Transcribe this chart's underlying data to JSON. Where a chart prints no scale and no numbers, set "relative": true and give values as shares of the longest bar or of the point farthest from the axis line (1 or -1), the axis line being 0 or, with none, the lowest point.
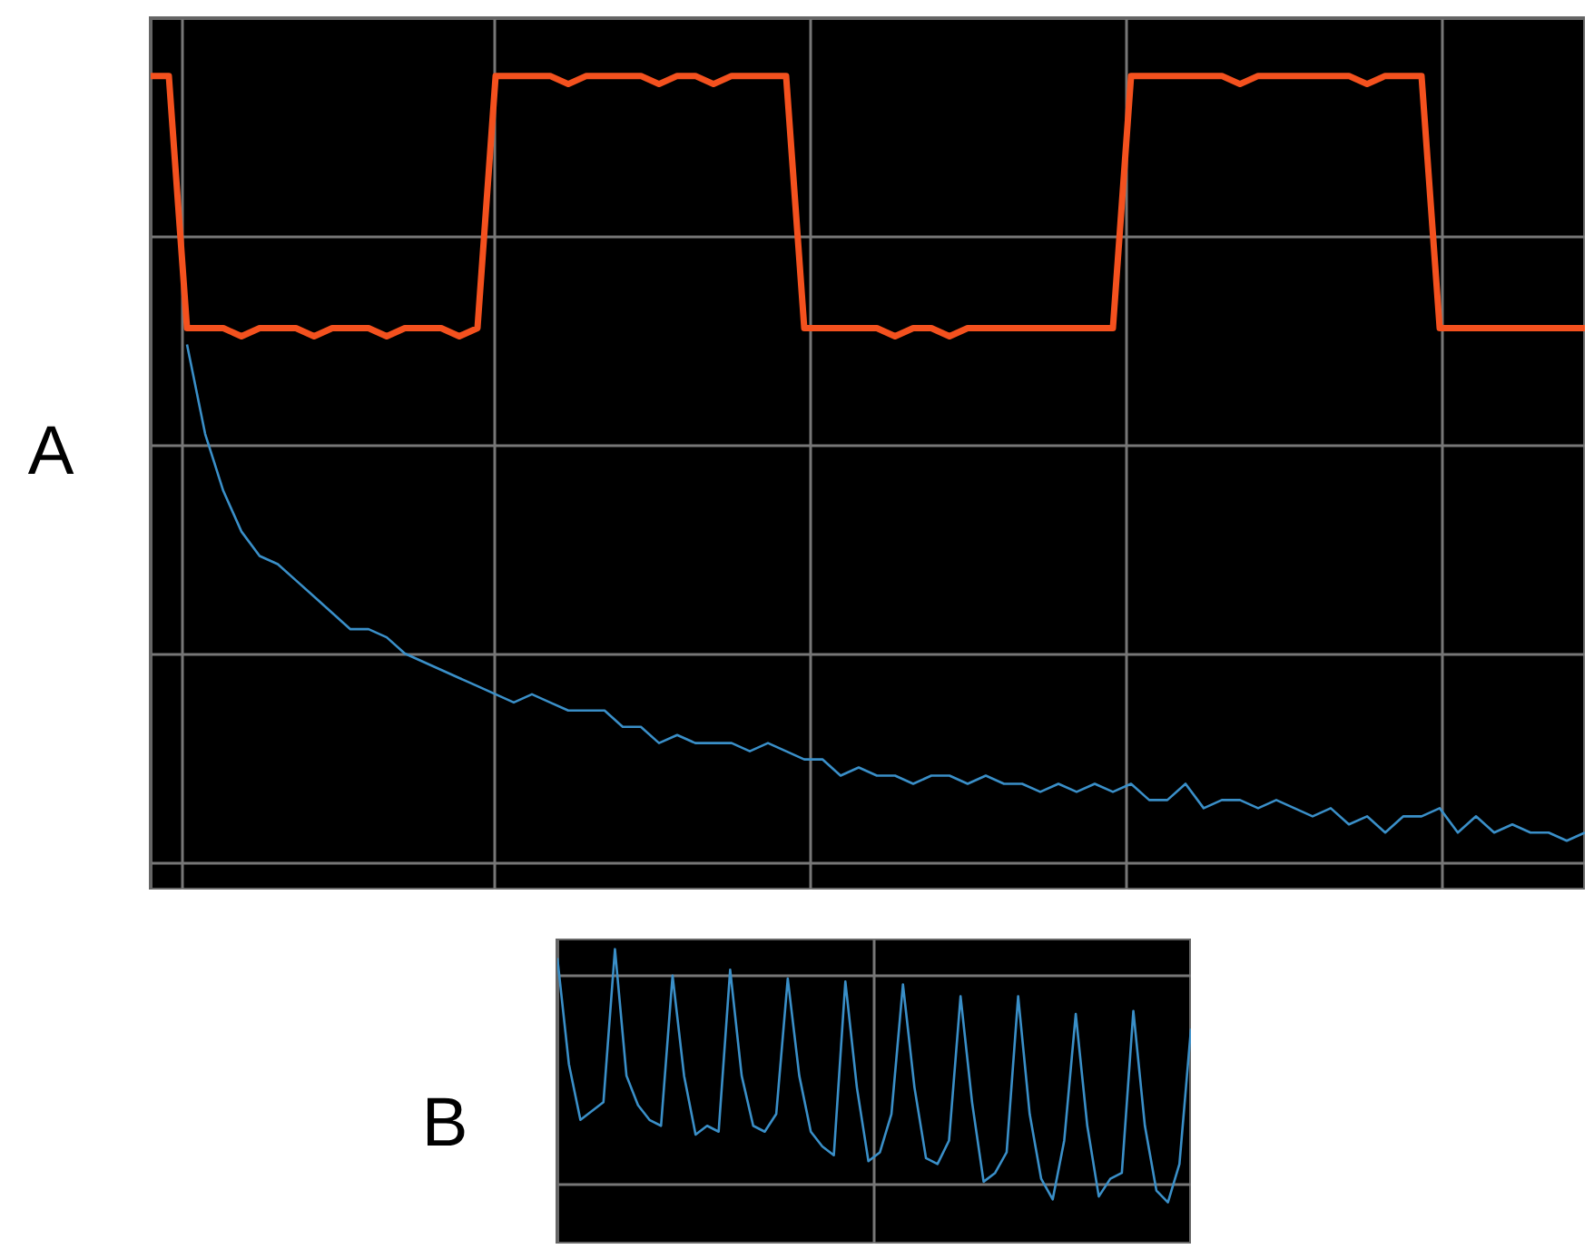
{
  "chart_data": [
    {
      "type": "line",
      "title": "A",
      "relative": true,
      "grid": true,
      "categories": [
        null,
        null,
        null,
        null,
        null,
        null,
        null,
        null,
        null,
        null,
        null,
        null,
        null,
        null,
        null,
        null,
        null,
        null,
        null,
        null,
        null,
        null,
        null,
        null,
        null,
        null,
        null,
        null,
        null,
        null,
        null,
        null,
        null,
        null,
        null,
        null,
        null,
        null,
        null,
        null,
        null,
        null,
        null,
        null,
        null,
        null,
        null,
        null,
        null,
        null,
        null,
        null,
        null,
        null,
        null,
        null,
        null,
        null,
        null,
        null,
        null,
        null,
        null,
        null,
        null,
        null,
        null,
        null,
        null,
        null,
        null,
        null,
        null,
        null,
        null,
        null,
        null,
        null,
        null,
        null
      ],
      "series": [
        {
          "color": "#f4511e",
          "values": [
            1,
            1,
            0.69,
            0.69,
            0.69,
            0.68,
            0.69,
            0.69,
            0.69,
            0.68,
            0.69,
            0.69,
            0.69,
            0.68,
            0.69,
            0.69,
            0.69,
            0.68,
            0.69,
            1,
            1,
            1,
            1,
            0.99,
            1,
            1,
            1,
            1,
            0.99,
            1,
            1,
            0.99,
            1,
            1,
            1,
            1,
            0.69,
            0.69,
            0.69,
            0.69,
            0.69,
            0.68,
            0.69,
            0.69,
            0.68,
            0.69,
            0.69,
            0.69,
            0.69,
            0.69,
            0.69,
            0.69,
            0.69,
            0.69,
            1,
            1,
            1,
            1,
            1,
            1,
            0.99,
            1,
            1,
            1,
            1,
            1,
            1,
            0.99,
            1,
            1,
            1,
            0.69,
            0.69,
            0.69,
            0.69,
            0.69,
            0.69,
            0.69,
            0.69,
            0.69
          ]
        },
        {
          "color": "#3a8fc8",
          "values": [
            null,
            null,
            0.67,
            0.56,
            0.49,
            0.44,
            0.41,
            0.4,
            0.38,
            0.36,
            0.34,
            0.32,
            0.32,
            0.31,
            0.29,
            0.28,
            0.27,
            0.26,
            0.25,
            0.24,
            0.23,
            0.24,
            0.23,
            0.22,
            0.22,
            0.22,
            0.2,
            0.2,
            0.18,
            0.19,
            0.18,
            0.18,
            0.18,
            0.17,
            0.18,
            0.17,
            0.16,
            0.16,
            0.14,
            0.15,
            0.14,
            0.14,
            0.13,
            0.14,
            0.14,
            0.13,
            0.14,
            0.13,
            0.13,
            0.12,
            0.13,
            0.12,
            0.13,
            0.12,
            0.13,
            0.11,
            0.11,
            0.13,
            0.1,
            0.11,
            0.11,
            0.1,
            0.11,
            0.1,
            0.09,
            0.1,
            0.08,
            0.09,
            0.07,
            0.09,
            0.09,
            0.1,
            0.07,
            0.09,
            0.07,
            0.08,
            0.07,
            0.07,
            0.06,
            0.07
          ]
        }
      ]
    },
    {
      "type": "line",
      "title": "B",
      "relative": true,
      "grid": true,
      "categories": [
        null,
        null,
        null,
        null,
        null,
        null,
        null,
        null,
        null,
        null,
        null,
        null,
        null,
        null,
        null,
        null,
        null,
        null,
        null,
        null,
        null,
        null,
        null,
        null,
        null,
        null,
        null,
        null,
        null,
        null,
        null,
        null,
        null,
        null,
        null,
        null,
        null,
        null,
        null,
        null,
        null,
        null,
        null,
        null,
        null,
        null,
        null,
        null,
        null,
        null,
        null,
        null,
        null,
        null,
        null,
        null
      ],
      "series": [
        {
          "color": "#3a8fc8",
          "values": [
            0.97,
            0.61,
            0.42,
            0.45,
            0.48,
            1,
            0.57,
            0.47,
            0.42,
            0.4,
            0.91,
            0.57,
            0.37,
            0.4,
            0.38,
            0.93,
            0.57,
            0.4,
            0.38,
            0.44,
            0.9,
            0.57,
            0.38,
            0.33,
            0.3,
            0.89,
            0.53,
            0.28,
            0.31,
            0.44,
            0.88,
            0.53,
            0.29,
            0.27,
            0.35,
            0.84,
            0.48,
            0.21,
            0.24,
            0.31,
            0.84,
            0.44,
            0.22,
            0.15,
            0.35,
            0.78,
            0.4,
            0.16,
            0.22,
            0.24,
            0.79,
            0.4,
            0.18,
            0.14,
            0.27,
            0.73
          ]
        }
      ]
    }
  ]
}
